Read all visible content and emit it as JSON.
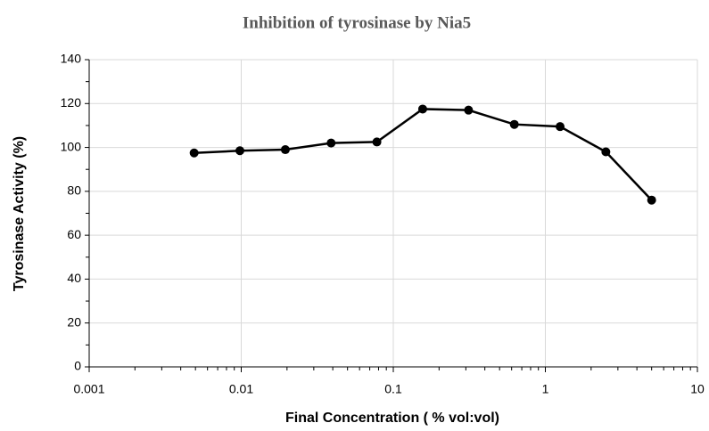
{
  "chart_data": {
    "type": "line",
    "title": "Inhibition of tyrosinase by Nia5",
    "x_label": "Final Concentration ( % vol:vol)",
    "y_label": "Tyrosinase Activity (%)",
    "x": [
      0.0049,
      0.0098,
      0.0195,
      0.039,
      0.078,
      0.156,
      0.3125,
      0.625,
      1.25,
      2.5,
      5
    ],
    "series": [
      {
        "name": "Nia5",
        "color": "#000000",
        "values": [
          97.5,
          98.5,
          99,
          102,
          102.5,
          117.5,
          117,
          110.5,
          109.5,
          98,
          76
        ]
      }
    ],
    "xscale": "log",
    "xlim": [
      0.001,
      10
    ],
    "xticks": [
      0.001,
      0.01,
      0.1,
      1,
      10
    ],
    "ylim": [
      0,
      140
    ],
    "yticks": [
      0,
      20,
      40,
      60,
      80,
      100,
      120,
      140
    ],
    "grid": true
  }
}
